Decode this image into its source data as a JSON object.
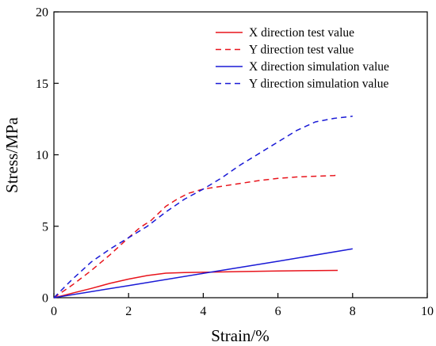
{
  "chart_data": {
    "type": "line",
    "title": "",
    "xlabel": "Strain/%",
    "ylabel": "Stress/MPa",
    "xlim": [
      0,
      10
    ],
    "ylim": [
      0,
      20
    ],
    "xticks": [
      0,
      2,
      4,
      6,
      8,
      10
    ],
    "yticks": [
      0,
      5,
      10,
      15,
      20
    ],
    "grid": false,
    "legend_position": "top-right",
    "series": [
      {
        "name": "X direction test value",
        "color": "#e8141c",
        "dash": "solid",
        "x": [
          0,
          0.2,
          0.5,
          1.0,
          1.5,
          2.0,
          2.5,
          3.0,
          3.5,
          4.0,
          5.0,
          6.0,
          7.0,
          7.6
        ],
        "y": [
          0,
          0.12,
          0.32,
          0.65,
          1.0,
          1.3,
          1.55,
          1.72,
          1.76,
          1.78,
          1.83,
          1.87,
          1.9,
          1.91
        ]
      },
      {
        "name": "Y direction test value",
        "color": "#e8141c",
        "dash": "dashed",
        "x": [
          0,
          0.5,
          1.0,
          1.5,
          2.0,
          2.3,
          2.6,
          3.0,
          3.3,
          3.6,
          4.0,
          4.5,
          5.0,
          5.5,
          6.0,
          6.5,
          7.0,
          7.5,
          7.6
        ],
        "y": [
          0,
          0.9,
          1.9,
          3.0,
          4.2,
          4.9,
          5.4,
          6.4,
          6.9,
          7.3,
          7.6,
          7.8,
          8.0,
          8.2,
          8.35,
          8.45,
          8.5,
          8.55,
          8.57
        ]
      },
      {
        "name": "X direction simulation value",
        "color": "#1a1ad6",
        "dash": "solid",
        "x": [
          0,
          2,
          4,
          6,
          8
        ],
        "y": [
          0,
          0.85,
          1.7,
          2.55,
          3.42
        ]
      },
      {
        "name": "Y direction simulation value",
        "color": "#1a1ad6",
        "dash": "dashed",
        "x": [
          0,
          0.5,
          1.0,
          1.5,
          2.0,
          2.5,
          3.0,
          3.5,
          4.0,
          4.5,
          5.0,
          5.5,
          6.0,
          6.5,
          7.0,
          7.5,
          8.0
        ],
        "y": [
          0,
          1.3,
          2.5,
          3.4,
          4.2,
          5.0,
          6.0,
          6.9,
          7.6,
          8.4,
          9.3,
          10.1,
          10.9,
          11.7,
          12.3,
          12.55,
          12.7
        ]
      }
    ]
  }
}
